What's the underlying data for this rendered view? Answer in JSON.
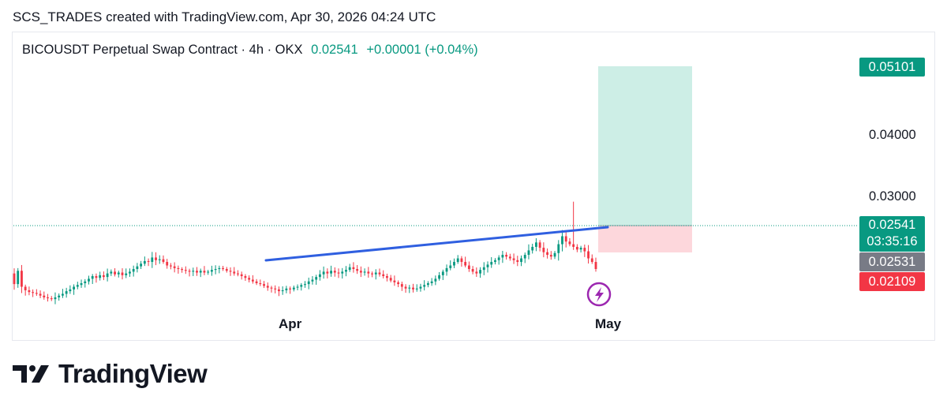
{
  "header": {
    "text": "SCS_TRADES created with TradingView.com, Apr 30, 2026 04:24 UTC"
  },
  "legend": {
    "symbol": "BICOUSDT Perpetual Swap Contract · 4h · OKX",
    "last": "0.02541",
    "change": "+0.00001 (+0.04%)"
  },
  "price_axis": {
    "labels": [
      "0.04000",
      "0.03000"
    ],
    "target_tag": "0.05101",
    "last_tag": "0.02541",
    "countdown_tag": "03:35:16",
    "prev_tag": "0.02531",
    "stop_tag": "0.02109"
  },
  "time_axis": {
    "labels": [
      "Apr",
      "May"
    ]
  },
  "branding": {
    "logo_text": "TradingView"
  },
  "colors": {
    "up": "#089981",
    "down": "#f23645",
    "trendline": "#2962ff",
    "target_zone": "#cdeee6",
    "stop_zone": "#fdd7dc",
    "event": "#9c27b0"
  },
  "chart_data": {
    "type": "candlestick",
    "interval": "4h",
    "ylim": [
      0.0173,
      0.0522
    ],
    "trendline": {
      "from": [
        "Apr 8",
        0.0226
      ],
      "to": [
        "Apr 30",
        0.02545
      ]
    },
    "position": {
      "type": "long",
      "entry": 0.02541,
      "target": 0.05101,
      "stop": 0.02109
    },
    "event_icon": "lightning-icon",
    "closes": [
      0.0237,
      0.0252,
      0.0234,
      0.023,
      0.0228,
      0.0227,
      0.0226,
      0.0224,
      0.0222,
      0.0221,
      0.022,
      0.0222,
      0.0224,
      0.0226,
      0.0229,
      0.0231,
      0.0234,
      0.0236,
      0.0238,
      0.024,
      0.0243,
      0.0246,
      0.0244,
      0.0247,
      0.0245,
      0.0249,
      0.0251,
      0.0248,
      0.025,
      0.0247,
      0.0249,
      0.0251,
      0.0254,
      0.0257,
      0.026,
      0.0263,
      0.0262,
      0.0267,
      0.0264,
      0.0265,
      0.0262,
      0.0258,
      0.0257,
      0.0255,
      0.0254,
      0.0253,
      0.0252,
      0.0251,
      0.0252,
      0.025,
      0.0252,
      0.025,
      0.0251,
      0.0253,
      0.0254,
      0.0255,
      0.0254,
      0.0252,
      0.0251,
      0.0249,
      0.0248,
      0.0246,
      0.0244,
      0.0242,
      0.024,
      0.0238,
      0.0237,
      0.0235,
      0.0233,
      0.0232,
      0.0231,
      0.0229,
      0.023,
      0.0232,
      0.0231,
      0.0233,
      0.0234,
      0.0236,
      0.0237,
      0.024,
      0.0242,
      0.0245,
      0.0248,
      0.0251,
      0.0249,
      0.0252,
      0.025,
      0.0249,
      0.0251,
      0.0253,
      0.0256,
      0.0254,
      0.0252,
      0.025,
      0.0251,
      0.0249,
      0.0248,
      0.025,
      0.0248,
      0.0246,
      0.0244,
      0.0241,
      0.0239,
      0.0237,
      0.0234,
      0.0232,
      0.0233,
      0.0231,
      0.0232,
      0.0234,
      0.0236,
      0.0238,
      0.024,
      0.0243,
      0.0247,
      0.0251,
      0.0255,
      0.0258,
      0.0262,
      0.0266,
      0.0262,
      0.0258,
      0.0254,
      0.0251,
      0.0249,
      0.0253,
      0.0256,
      0.0259,
      0.0262,
      0.0264,
      0.0267,
      0.027,
      0.0268,
      0.0266,
      0.0264,
      0.0262,
      0.0266,
      0.027,
      0.0275,
      0.0279,
      0.0284,
      0.0278,
      0.0273,
      0.027,
      0.0268,
      0.0272,
      0.0282,
      0.0291,
      0.0285,
      0.0282,
      0.0279,
      0.0276,
      0.0278,
      0.0274,
      0.0266,
      0.0262,
      0.0254
    ]
  }
}
